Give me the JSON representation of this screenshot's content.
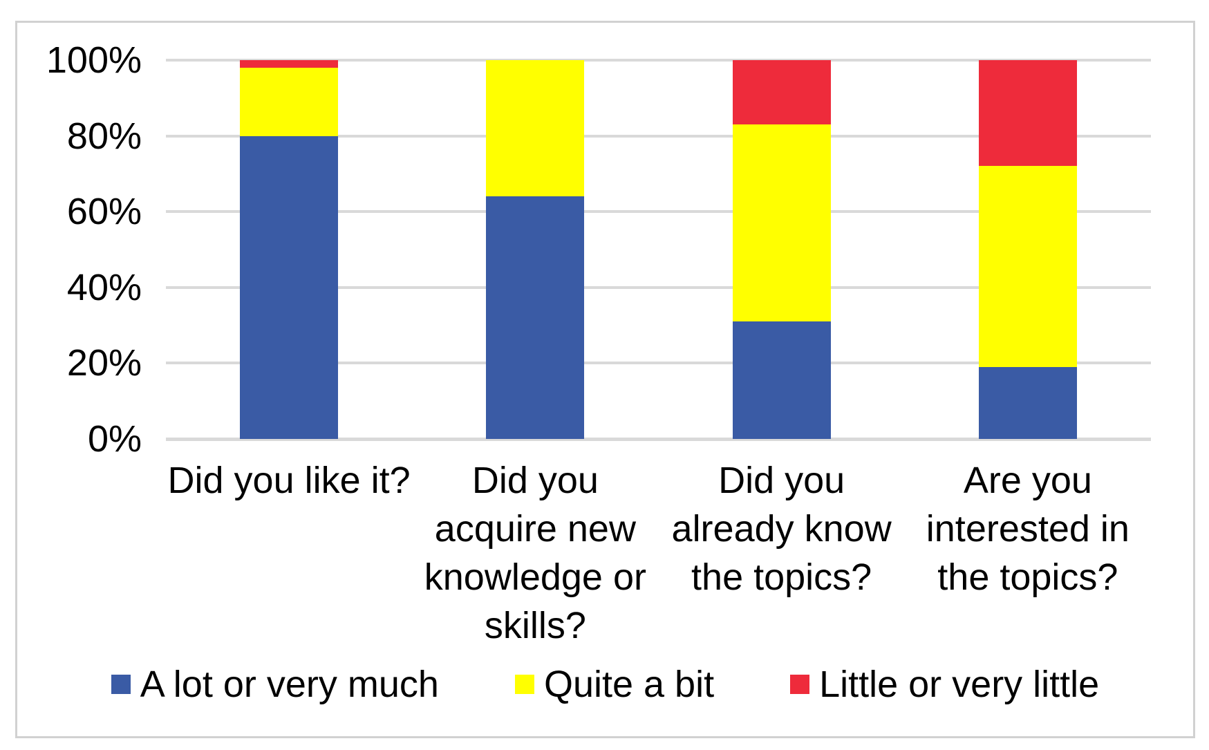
{
  "chart_data": {
    "type": "bar",
    "stacked": true,
    "stacking": "percent",
    "title": "",
    "xlabel": "",
    "ylabel": "",
    "ylim": [
      0,
      100
    ],
    "grid": true,
    "legend_position": "bottom",
    "background_color": "#FFFFFF",
    "gridline_color": "#D9D9D9",
    "frame_border_color": "#D1D1D1",
    "text_color": "#000000",
    "categories": [
      [
        "Did you like it?"
      ],
      [
        "Did you",
        "acquire new",
        "knowledge or",
        "skills?"
      ],
      [
        "Did you",
        "already know",
        "the topics?"
      ],
      [
        "Are you",
        "interested in",
        "the topics?"
      ]
    ],
    "series": [
      {
        "name": "A lot or very much",
        "color": "#3A5BA5",
        "values": [
          80,
          64,
          31,
          19
        ]
      },
      {
        "name": "Quite a bit",
        "color": "#FFFF00",
        "values": [
          18,
          36,
          52,
          53
        ]
      },
      {
        "name": "Little or very little",
        "color": "#EE2B3B",
        "values": [
          2,
          0,
          17,
          28
        ]
      }
    ],
    "yticks": [
      {
        "label": "100%",
        "value": 100
      },
      {
        "label": "80%",
        "value": 80
      },
      {
        "label": "60%",
        "value": 60
      },
      {
        "label": "40%",
        "value": 40
      },
      {
        "label": "20%",
        "value": 20
      },
      {
        "label": "0%",
        "value": 0
      }
    ],
    "values_unit": "percent"
  }
}
